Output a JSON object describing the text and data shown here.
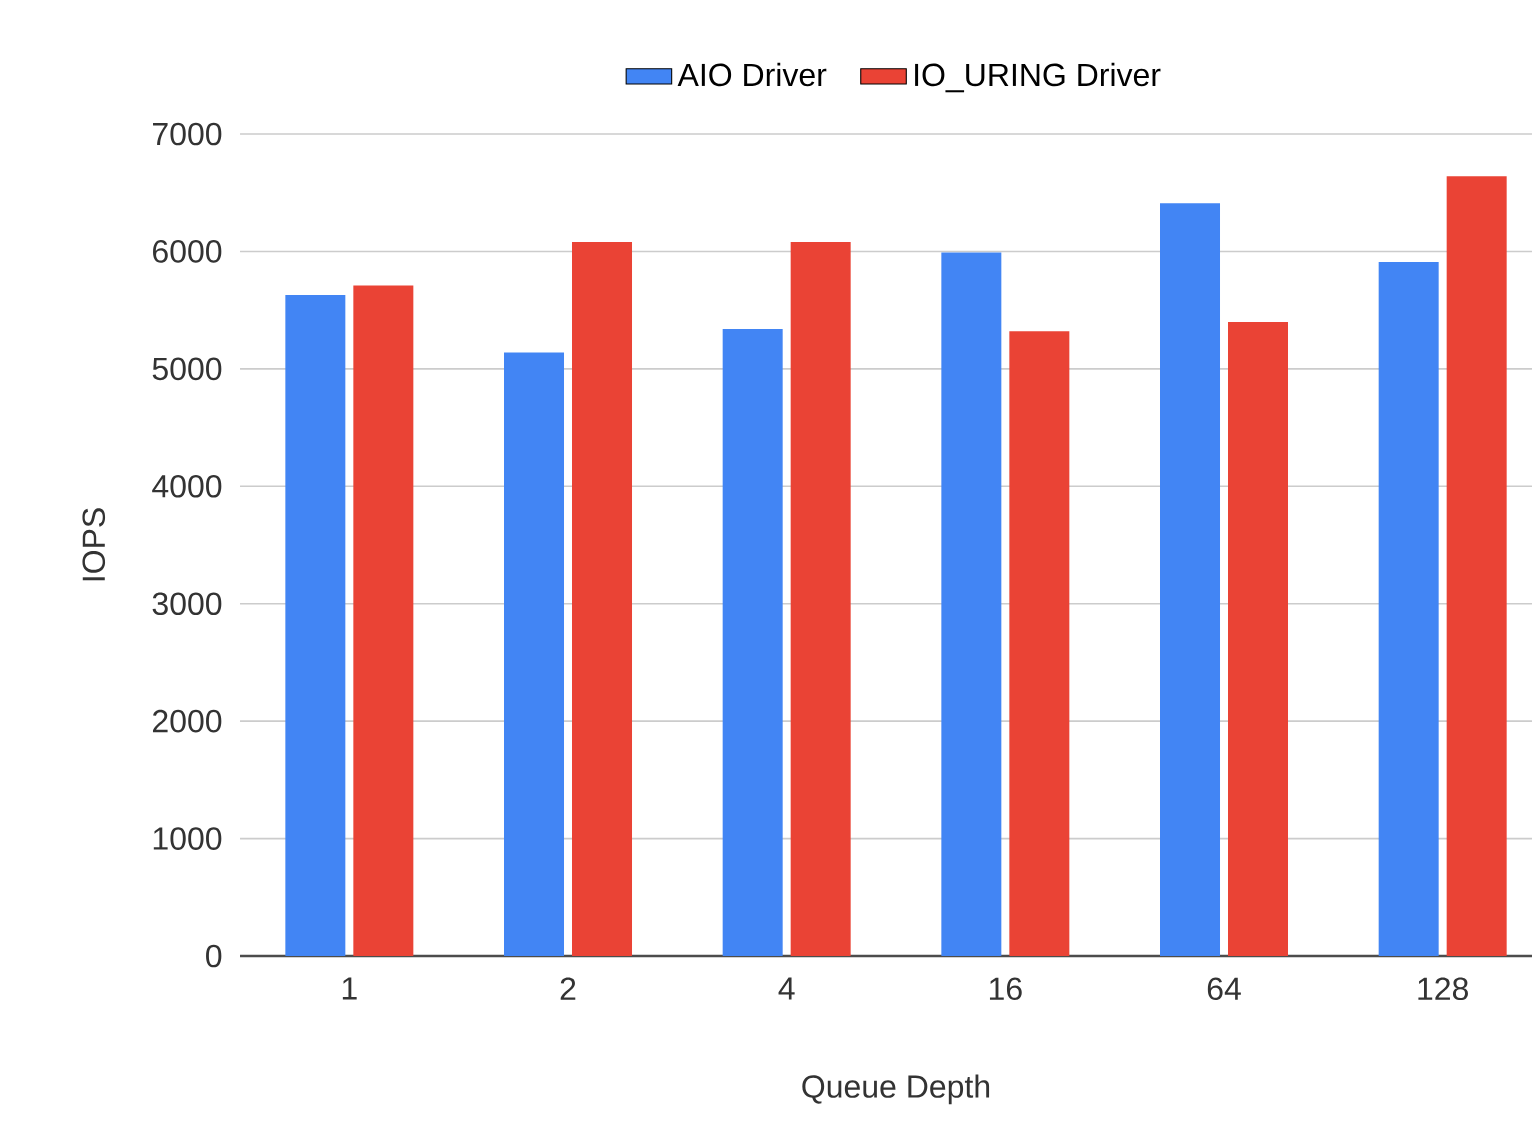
{
  "chart_data": {
    "type": "bar",
    "xlabel": "Queue Depth",
    "ylabel": "IOPS",
    "categories": [
      "1",
      "2",
      "4",
      "16",
      "64",
      "128"
    ],
    "series": [
      {
        "name": "AIO Driver",
        "color": "#4285f4",
        "values": [
          5630,
          5140,
          5340,
          5990,
          6410,
          5910
        ]
      },
      {
        "name": "IO_URING Driver",
        "color": "#ea4335",
        "values": [
          5710,
          6080,
          6080,
          5320,
          5400,
          6640
        ]
      }
    ],
    "ylim": [
      0,
      7000
    ],
    "yticks": [
      0,
      1000,
      2000,
      3000,
      4000,
      5000,
      6000,
      7000
    ],
    "grid": "y",
    "legend": "top"
  }
}
